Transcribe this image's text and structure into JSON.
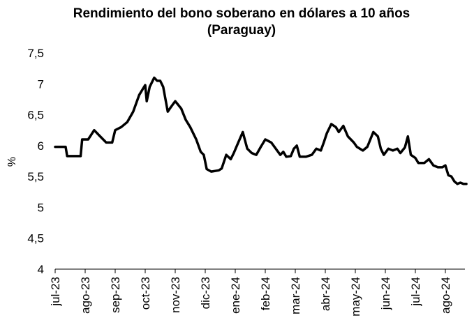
{
  "chart_data": {
    "type": "line",
    "title_line1": "Rendimiento del bono soberano en dólares a 10 años",
    "title_line2": "(Paraguay)",
    "ylabel": "%",
    "xlabel": "",
    "ylim": [
      4,
      7.5
    ],
    "yticks": [
      "4",
      "4,5",
      "5",
      "5,5",
      "6",
      "6,5",
      "7",
      "7,5"
    ],
    "xticks": [
      "jul-23",
      "ago-23",
      "sep-23",
      "oct-23",
      "nov-23",
      "dic-23",
      "ene-24",
      "feb-24",
      "mar-24",
      "abr-24",
      "may-24",
      "jun-24",
      "jul-24",
      "ago-24"
    ],
    "grid": false,
    "legend": "none",
    "line_color": "#000000",
    "series": [
      {
        "points": [
          [
            0,
            5.98
          ],
          [
            0.35,
            5.98
          ],
          [
            0.4,
            5.83
          ],
          [
            0.85,
            5.83
          ],
          [
            0.9,
            6.1
          ],
          [
            1.1,
            6.1
          ],
          [
            1.3,
            6.25
          ],
          [
            1.5,
            6.15
          ],
          [
            1.7,
            6.05
          ],
          [
            1.9,
            6.05
          ],
          [
            2.0,
            6.25
          ],
          [
            2.2,
            6.3
          ],
          [
            2.4,
            6.38
          ],
          [
            2.6,
            6.55
          ],
          [
            2.8,
            6.82
          ],
          [
            2.9,
            6.9
          ],
          [
            3.0,
            6.98
          ],
          [
            3.05,
            6.72
          ],
          [
            3.15,
            6.95
          ],
          [
            3.3,
            7.1
          ],
          [
            3.4,
            7.05
          ],
          [
            3.5,
            7.05
          ],
          [
            3.6,
            6.95
          ],
          [
            3.75,
            6.55
          ],
          [
            3.85,
            6.62
          ],
          [
            4.0,
            6.72
          ],
          [
            4.2,
            6.6
          ],
          [
            4.35,
            6.42
          ],
          [
            4.5,
            6.3
          ],
          [
            4.7,
            6.1
          ],
          [
            4.85,
            5.9
          ],
          [
            4.95,
            5.85
          ],
          [
            5.05,
            5.62
          ],
          [
            5.2,
            5.58
          ],
          [
            5.45,
            5.6
          ],
          [
            5.55,
            5.63
          ],
          [
            5.7,
            5.85
          ],
          [
            5.85,
            5.78
          ],
          [
            5.95,
            5.88
          ],
          [
            6.1,
            6.05
          ],
          [
            6.25,
            6.22
          ],
          [
            6.4,
            5.95
          ],
          [
            6.55,
            5.88
          ],
          [
            6.7,
            5.85
          ],
          [
            6.85,
            5.98
          ],
          [
            7.0,
            6.1
          ],
          [
            7.2,
            6.05
          ],
          [
            7.35,
            5.95
          ],
          [
            7.5,
            5.85
          ],
          [
            7.6,
            5.9
          ],
          [
            7.7,
            5.82
          ],
          [
            7.85,
            5.83
          ],
          [
            7.95,
            5.95
          ],
          [
            8.05,
            6.0
          ],
          [
            8.15,
            5.82
          ],
          [
            8.35,
            5.82
          ],
          [
            8.55,
            5.85
          ],
          [
            8.7,
            5.95
          ],
          [
            8.85,
            5.92
          ],
          [
            8.95,
            6.05
          ],
          [
            9.05,
            6.2
          ],
          [
            9.2,
            6.35
          ],
          [
            9.35,
            6.3
          ],
          [
            9.45,
            6.22
          ],
          [
            9.6,
            6.32
          ],
          [
            9.75,
            6.15
          ],
          [
            9.95,
            6.05
          ],
          [
            10.05,
            5.98
          ],
          [
            10.25,
            5.92
          ],
          [
            10.4,
            5.98
          ],
          [
            10.5,
            6.1
          ],
          [
            10.6,
            6.22
          ],
          [
            10.75,
            6.15
          ],
          [
            10.85,
            5.95
          ],
          [
            10.95,
            5.85
          ],
          [
            11.1,
            5.95
          ],
          [
            11.25,
            5.92
          ],
          [
            11.4,
            5.95
          ],
          [
            11.5,
            5.88
          ],
          [
            11.65,
            5.97
          ],
          [
            11.75,
            6.15
          ],
          [
            11.85,
            5.85
          ],
          [
            12.0,
            5.8
          ],
          [
            12.1,
            5.72
          ],
          [
            12.3,
            5.72
          ],
          [
            12.45,
            5.78
          ],
          [
            12.6,
            5.68
          ],
          [
            12.75,
            5.65
          ],
          [
            12.9,
            5.65
          ],
          [
            13.0,
            5.68
          ],
          [
            13.1,
            5.52
          ],
          [
            13.2,
            5.5
          ],
          [
            13.3,
            5.42
          ],
          [
            13.4,
            5.38
          ],
          [
            13.5,
            5.4
          ],
          [
            13.6,
            5.38
          ],
          [
            13.7,
            5.38
          ]
        ]
      }
    ]
  }
}
